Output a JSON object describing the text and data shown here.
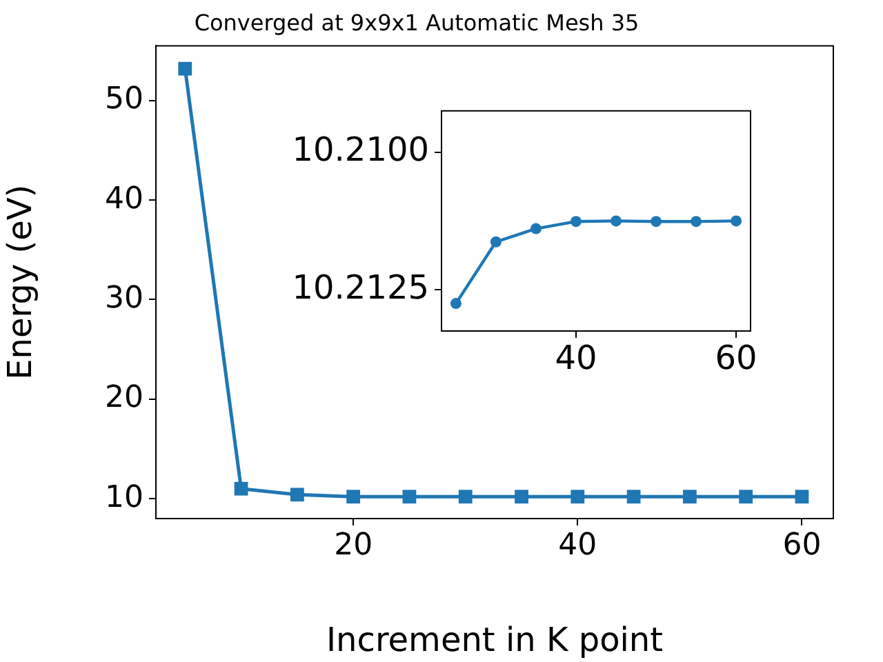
{
  "chart_data": [
    {
      "type": "line",
      "title": "Converged at 9x9x1 Automatic Mesh 35",
      "xlabel": "Increment in K point",
      "ylabel": "Energy (eV)",
      "x": [
        5,
        10,
        15,
        20,
        25,
        30,
        35,
        40,
        45,
        50,
        55,
        60
      ],
      "series": [
        {
          "color": "#1f77b4",
          "values": [
            53.2,
            11.0,
            10.4,
            10.2,
            10.2,
            10.2,
            10.2,
            10.2,
            10.2,
            10.2,
            10.2,
            10.2
          ]
        }
      ],
      "xlim": [
        2.4,
        62.8
      ],
      "xticks": [
        20,
        40,
        60
      ],
      "ylim": [
        8.0,
        55.5
      ],
      "yticks": [
        10,
        20,
        30,
        40,
        50
      ],
      "marker": "square",
      "grid": false,
      "legend": false
    },
    {
      "type": "line",
      "x": [
        25,
        30,
        35,
        40,
        45,
        50,
        55,
        60
      ],
      "series": [
        {
          "color": "#1f77b4",
          "values": [
            10.21275,
            10.21163,
            10.21139,
            10.21126,
            10.21125,
            10.21126,
            10.21126,
            10.21125
          ]
        }
      ],
      "xlim": [
        23.2,
        61.8
      ],
      "xticks": [
        40,
        60
      ],
      "ylim": [
        10.21325,
        10.20925
      ],
      "yticks": [
        {
          "value": 10.21,
          "label": "10.2100"
        },
        {
          "value": 10.2125,
          "label": "10.2125"
        }
      ],
      "marker": "circle",
      "grid": false,
      "legend": false
    }
  ]
}
